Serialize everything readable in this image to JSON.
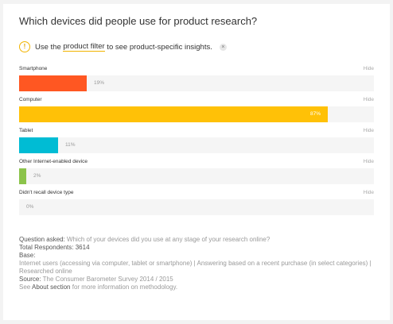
{
  "title": "Which devices did people use for product research?",
  "notice": {
    "prefix": "Use the ",
    "link": "product filter",
    "suffix": " to see product-specific insights.",
    "icon": "!",
    "close": "×"
  },
  "hide_label": "Hide",
  "colors": {
    "Smartphone": "#ff5722",
    "Computer": "#ffc107",
    "Tablet": "#00bcd4",
    "Other Internet-enabled device": "#8bc34a",
    "Didn't recall device type": "#cccccc"
  },
  "chart_data": {
    "type": "bar",
    "orientation": "horizontal",
    "categories": [
      "Smartphone",
      "Computer",
      "Tablet",
      "Other Internet-enabled device",
      "Didn't recall device type"
    ],
    "values": [
      19,
      87,
      11,
      2,
      0
    ],
    "value_labels": [
      "19%",
      "87%",
      "11%",
      "2%",
      "0%"
    ],
    "unit": "%",
    "xlim": [
      0,
      100
    ]
  },
  "footer": {
    "question_label": "Question asked:",
    "question": "Which of your devices did you use at any stage of your research online?",
    "respondents_label": "Total Respondents:",
    "respondents": "3614",
    "base_label": "Base:",
    "base": "Internet users (accessing via computer, tablet or smartphone) | Answering based on a recent purchase (in select categories) | Researched online",
    "source_label": "Source:",
    "source": "The Consumer Barometer Survey 2014 / 2015",
    "see_prefix": "See ",
    "see_link": "About section",
    "see_suffix": " for more information on methodology."
  }
}
